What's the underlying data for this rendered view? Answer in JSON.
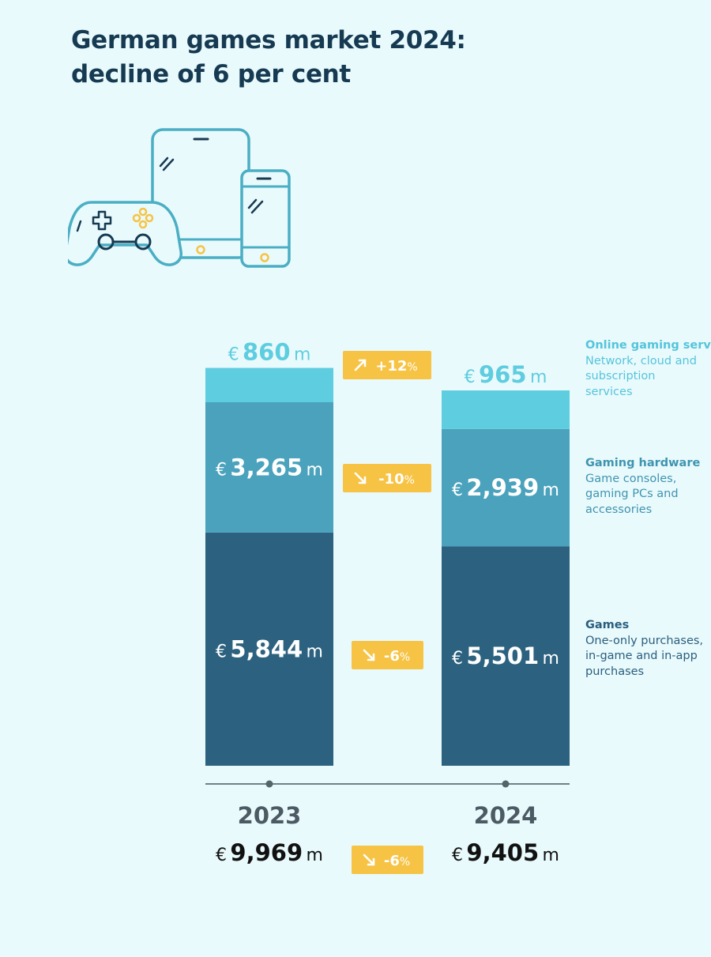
{
  "title": {
    "line1": "German games market 2024:",
    "line2": "decline of 6 per cent"
  },
  "illustration": {
    "icon_names": [
      "game-controller-icon",
      "tablet-icon",
      "smartphone-icon"
    ]
  },
  "colors": {
    "background": "#e9fafc",
    "online": "#5ecde0",
    "hardware": "#4aa2bc",
    "games": "#2c627f",
    "badge": "#f6c344",
    "text_dark": "#163a52",
    "year": "#4b5a63",
    "axis": "#70808a"
  },
  "legend": {
    "online": {
      "head": "Online gaming services",
      "desc": "Network, cloud and subscription services"
    },
    "hardware": {
      "head": "Gaming hardware",
      "desc": "Game consoles, gaming PCs and accessories"
    },
    "games": {
      "head": "Games",
      "desc": "One-only purchases, in-game and in-app purchases"
    }
  },
  "chart_data": {
    "type": "bar",
    "stacked": true,
    "categories": [
      "2023",
      "2024"
    ],
    "unit": "€ m",
    "series": [
      {
        "name": "Games",
        "values": [
          5844,
          5501
        ]
      },
      {
        "name": "Gaming hardware",
        "values": [
          3265,
          2939
        ]
      },
      {
        "name": "Online gaming services",
        "values": [
          860,
          965
        ]
      }
    ],
    "value_labels": [
      [
        "5,844",
        "3,265",
        "860"
      ],
      [
        "5,501",
        "2,939",
        "965"
      ]
    ],
    "totals": [
      9969,
      9405
    ],
    "total_labels": [
      "9,969",
      "9,405"
    ],
    "currency_symbol": "€",
    "unit_suffix": "m",
    "changes": [
      {
        "series": "Games",
        "label": "-6",
        "direction": "down"
      },
      {
        "series": "Gaming hardware",
        "label": "-10",
        "direction": "down"
      },
      {
        "series": "Online gaming services",
        "label": "+12",
        "direction": "up"
      },
      {
        "series": "Total",
        "label": "-6",
        "direction": "down"
      }
    ],
    "percent_sign": "%"
  }
}
